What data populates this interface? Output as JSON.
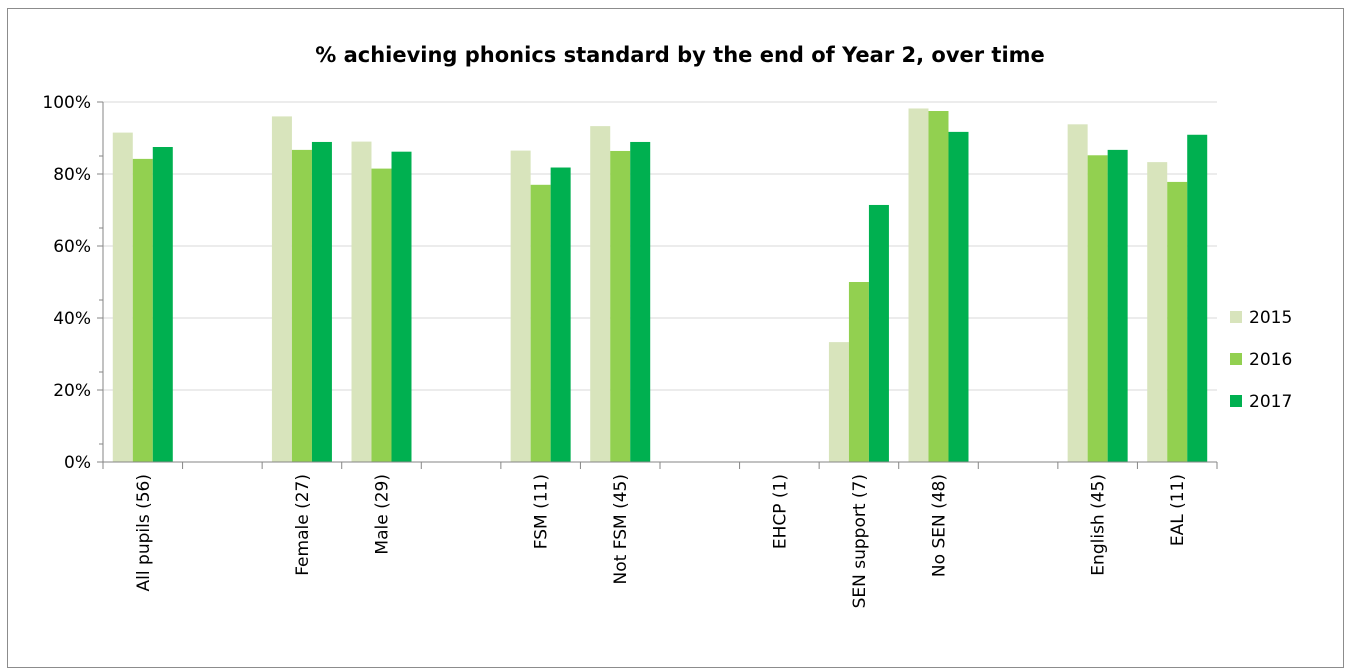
{
  "chart_data": {
    "type": "bar",
    "title": "% achieving phonics standard by the end of Year 2, over time",
    "categories": [
      "All pupils (56)",
      "",
      "Female (27)",
      "Male (29)",
      "",
      "FSM (11)",
      "Not FSM (45)",
      "",
      "EHCP (1)",
      "SEN support (7)",
      "No SEN (48)",
      "",
      "English (45)",
      "EAL (11)"
    ],
    "series": [
      {
        "name": "2015",
        "color": "#d8e4bc",
        "values": [
          91.5,
          null,
          96,
          89,
          null,
          86.5,
          93.3,
          null,
          null,
          33.3,
          98.2,
          null,
          93.8,
          83.3
        ]
      },
      {
        "name": "2016",
        "color": "#92d050",
        "values": [
          84.2,
          null,
          86.7,
          81.5,
          null,
          77,
          86.4,
          null,
          null,
          50,
          97.5,
          null,
          85.2,
          77.8
        ]
      },
      {
        "name": "2017",
        "color": "#00b050",
        "values": [
          87.5,
          null,
          88.9,
          86.2,
          null,
          81.8,
          88.9,
          null,
          null,
          71.4,
          91.7,
          null,
          86.7,
          90.9
        ]
      }
    ],
    "ylim": [
      0,
      100
    ],
    "yticks": [
      "0%",
      "20%",
      "40%",
      "60%",
      "80%",
      "100%"
    ],
    "grid": true,
    "legend_position": "right"
  }
}
